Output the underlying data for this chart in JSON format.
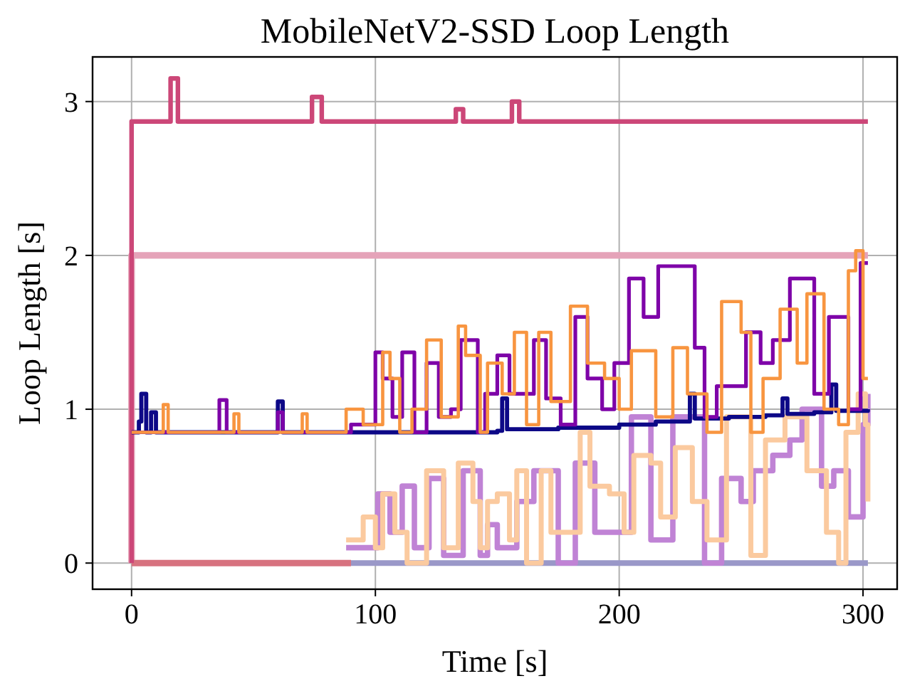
{
  "chart_data": {
    "type": "step",
    "title": "MobileNetV2-SSD Loop Length",
    "xlabel": "Time [s]",
    "ylabel": "Loop Length [s]",
    "xlim": [
      -16,
      314
    ],
    "ylim": [
      -0.17,
      3.29
    ],
    "xticks": [
      0,
      100,
      200,
      300
    ],
    "yticks": [
      0,
      1,
      2,
      3
    ],
    "grid": true,
    "series": [
      {
        "color": "#e5a3b9",
        "x": [
          0,
          0,
          302
        ],
        "values": [
          0,
          2,
          2
        ]
      },
      {
        "color": "#d7727f",
        "x": [
          0,
          90
        ],
        "values": [
          0,
          0
        ]
      },
      {
        "color": "#9a98c8",
        "x": [
          90,
          302
        ],
        "values": [
          0,
          0
        ]
      },
      {
        "color": "#c083d5",
        "x": [
          88,
          101,
          106,
          111,
          116,
          122,
          128,
          136,
          143,
          146,
          150,
          158,
          165,
          175,
          182,
          190,
          205,
          213,
          222,
          235,
          242,
          250,
          255,
          263,
          270,
          275,
          283,
          288,
          294,
          300,
          302
        ],
        "values": [
          0.1,
          0.45,
          0.2,
          0.5,
          0.1,
          0.55,
          0.05,
          0.6,
          0.05,
          0.25,
          0.1,
          0.4,
          0.6,
          0,
          0.65,
          0.2,
          0.95,
          0.15,
          0.95,
          0,
          0.55,
          0.4,
          0.6,
          0.7,
          0.8,
          1.0,
          0.5,
          0.6,
          0.3,
          0.9,
          1.1
        ]
      },
      {
        "color": "#fbca9f",
        "x": [
          88,
          95,
          100,
          103,
          108,
          113,
          121,
          128,
          134,
          140,
          143,
          146,
          150,
          155,
          158,
          162,
          168,
          172,
          184,
          188,
          196,
          202,
          206,
          213,
          217,
          223,
          230,
          236,
          244,
          254,
          260,
          268,
          277,
          285,
          290,
          293,
          298,
          301,
          302
        ],
        "values": [
          0.15,
          0.3,
          0.1,
          0.45,
          0.2,
          0,
          0.6,
          0.1,
          0.65,
          0.4,
          0.1,
          0.4,
          0.45,
          0.15,
          0.6,
          0,
          0.6,
          0.2,
          0.85,
          0.5,
          0.45,
          0.2,
          0.7,
          0.65,
          0.3,
          0.75,
          0.4,
          0.15,
          0.95,
          0.05,
          0.8,
          0.95,
          0.6,
          0.2,
          0,
          0.85,
          1.1,
          0.9,
          0.4
        ]
      },
      {
        "color": "#cc4778",
        "x": [
          0,
          0,
          16,
          19,
          74,
          78,
          133,
          136,
          156,
          159,
          302
        ],
        "values": [
          0,
          2.87,
          3.15,
          2.87,
          3.03,
          2.87,
          2.95,
          2.87,
          3.0,
          2.87,
          2.87
        ]
      },
      {
        "color": "#0d0887",
        "x": [
          0,
          3,
          4,
          6,
          8,
          10,
          60,
          62,
          150,
          152,
          154,
          175,
          200,
          215,
          229,
          231,
          245,
          260,
          267,
          269,
          280,
          287,
          289,
          302
        ],
        "values": [
          0.85,
          0.92,
          1.1,
          0.85,
          0.98,
          0.85,
          1.05,
          0.85,
          0.86,
          1.07,
          0.87,
          0.88,
          0.9,
          0.92,
          1.1,
          0.94,
          0.95,
          0.96,
          1.07,
          0.97,
          0.98,
          1.16,
          0.99,
          1.0
        ]
      },
      {
        "color": "#7e03a8",
        "x": [
          0,
          36,
          39,
          60,
          62,
          90,
          100,
          103,
          107,
          111,
          116,
          121,
          126,
          131,
          135,
          142,
          145,
          150,
          155,
          165,
          170,
          176,
          182,
          187,
          193,
          198,
          204,
          210,
          216,
          231,
          235,
          240,
          252,
          258,
          263,
          270,
          280,
          286,
          294,
          299,
          302
        ],
        "values": [
          0.85,
          1.06,
          0.85,
          0.98,
          0.85,
          0.9,
          1.37,
          1.2,
          0.95,
          1.37,
          0.85,
          1.3,
          0.95,
          1.0,
          1.45,
          0.85,
          1.1,
          1.35,
          1.1,
          1.45,
          1.07,
          0.9,
          1.6,
          1.2,
          1.0,
          1.3,
          1.85,
          1.6,
          1.93,
          1.4,
          0.95,
          1.15,
          1.5,
          1.3,
          1.45,
          1.85,
          1.1,
          1.6,
          1.0,
          1.95,
          1.95
        ]
      },
      {
        "color": "#f89540",
        "x": [
          0,
          13,
          15,
          42,
          44,
          70,
          72,
          88,
          95,
          103,
          106,
          110,
          115,
          121,
          127,
          134,
          137,
          143,
          146,
          152,
          157,
          162,
          167,
          172,
          180,
          187,
          194,
          200,
          205,
          215,
          222,
          228,
          236,
          242,
          250,
          254,
          259,
          266,
          273,
          277,
          284,
          290,
          294,
          297,
          300,
          302
        ],
        "values": [
          0.85,
          1.03,
          0.85,
          0.97,
          0.85,
          0.97,
          0.85,
          1.0,
          0.9,
          1.37,
          1.2,
          0.85,
          1.0,
          1.45,
          0.95,
          1.54,
          1.35,
          0.85,
          1.3,
          1.1,
          1.5,
          0.9,
          1.5,
          1.05,
          1.67,
          1.3,
          1.2,
          1.0,
          1.38,
          0.95,
          1.4,
          1.1,
          0.85,
          1.7,
          1.5,
          0.85,
          1.2,
          1.65,
          1.3,
          1.75,
          1.0,
          0.9,
          1.9,
          2.03,
          1.2,
          1.2
        ]
      }
    ]
  }
}
